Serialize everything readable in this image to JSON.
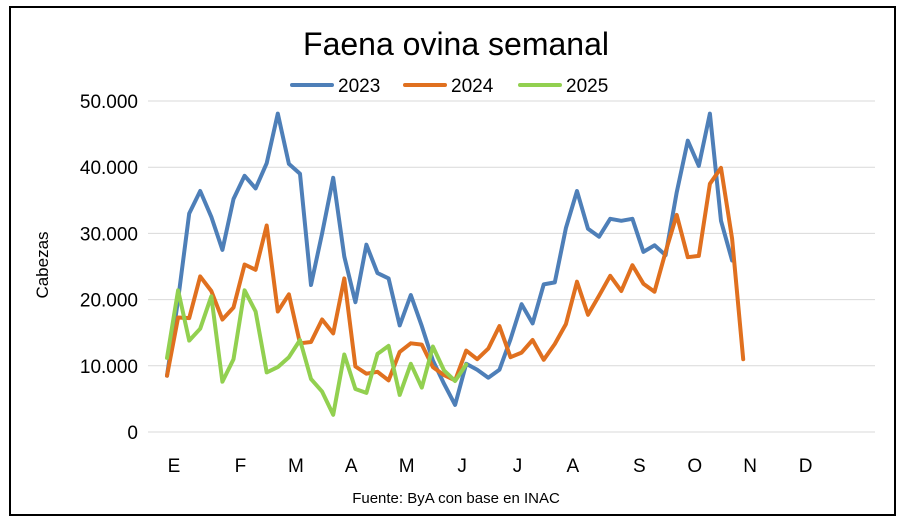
{
  "chart_data": {
    "type": "line",
    "title": "Faena ovina semanal",
    "ylabel": "Cabezas",
    "source": "Fuente: ByA con base en INAC",
    "ylim": [
      0,
      50000
    ],
    "y_ticks": [
      0,
      10000,
      20000,
      30000,
      40000,
      50000
    ],
    "y_tick_labels": [
      "0",
      "10.000",
      "20.000",
      "30.000",
      "40.000",
      "50.000"
    ],
    "x_range": [
      1,
      53
    ],
    "x_ticks": [
      {
        "week": 1,
        "label": "E"
      },
      {
        "week": 7,
        "label": "F"
      },
      {
        "week": 12,
        "label": "M"
      },
      {
        "week": 17,
        "label": "A"
      },
      {
        "week": 22,
        "label": "M"
      },
      {
        "week": 27,
        "label": "J"
      },
      {
        "week": 32,
        "label": "J"
      },
      {
        "week": 37,
        "label": "A"
      },
      {
        "week": 43,
        "label": "S"
      },
      {
        "week": 48,
        "label": "O"
      },
      {
        "week": 53,
        "label": "N"
      },
      {
        "week": 58,
        "label": "D"
      }
    ],
    "grid": true,
    "legend_position": "top",
    "series": [
      {
        "name": "2023",
        "color": "#4e7fb8",
        "values": [
          8500,
          20000,
          33000,
          36400,
          32500,
          27500,
          35200,
          38700,
          36800,
          40600,
          48100,
          40500,
          39000,
          22200,
          30000,
          38400,
          26500,
          19600,
          28300,
          24000,
          23200,
          16100,
          20700,
          16000,
          10800,
          7300,
          4100,
          10300,
          9400,
          8200,
          9400,
          14000,
          19300,
          16400,
          22300,
          22600,
          30800,
          36400,
          30700,
          29500,
          32200,
          31900,
          32200,
          27200,
          28200,
          26700,
          36200,
          44000,
          40200,
          48100,
          31900,
          25900
        ]
      },
      {
        "name": "2024",
        "color": "#e0701f",
        "values": [
          8500,
          17300,
          17200,
          23500,
          21300,
          17000,
          18800,
          25300,
          24500,
          31200,
          18200,
          20800,
          13400,
          13600,
          17000,
          14900,
          23200,
          9900,
          8800,
          9100,
          7800,
          12100,
          13400,
          13200,
          9800,
          8600,
          7800,
          12300,
          11000,
          12600,
          16000,
          11300,
          12000,
          13900,
          10900,
          13300,
          16300,
          22700,
          17700,
          20600,
          23600,
          21300,
          25200,
          22400,
          21200,
          27200,
          32800,
          26400,
          26600,
          37500,
          39900,
          29200,
          11000
        ]
      },
      {
        "name": "2025",
        "color": "#92d050",
        "values": [
          11200,
          21400,
          13800,
          15600,
          20500,
          7600,
          11000,
          21400,
          18200,
          9000,
          9800,
          11300,
          13900,
          8000,
          6100,
          2600,
          11700,
          6500,
          5900,
          11800,
          13000,
          5600,
          10300,
          6700,
          12900,
          9300,
          7700,
          10200
        ]
      }
    ]
  }
}
